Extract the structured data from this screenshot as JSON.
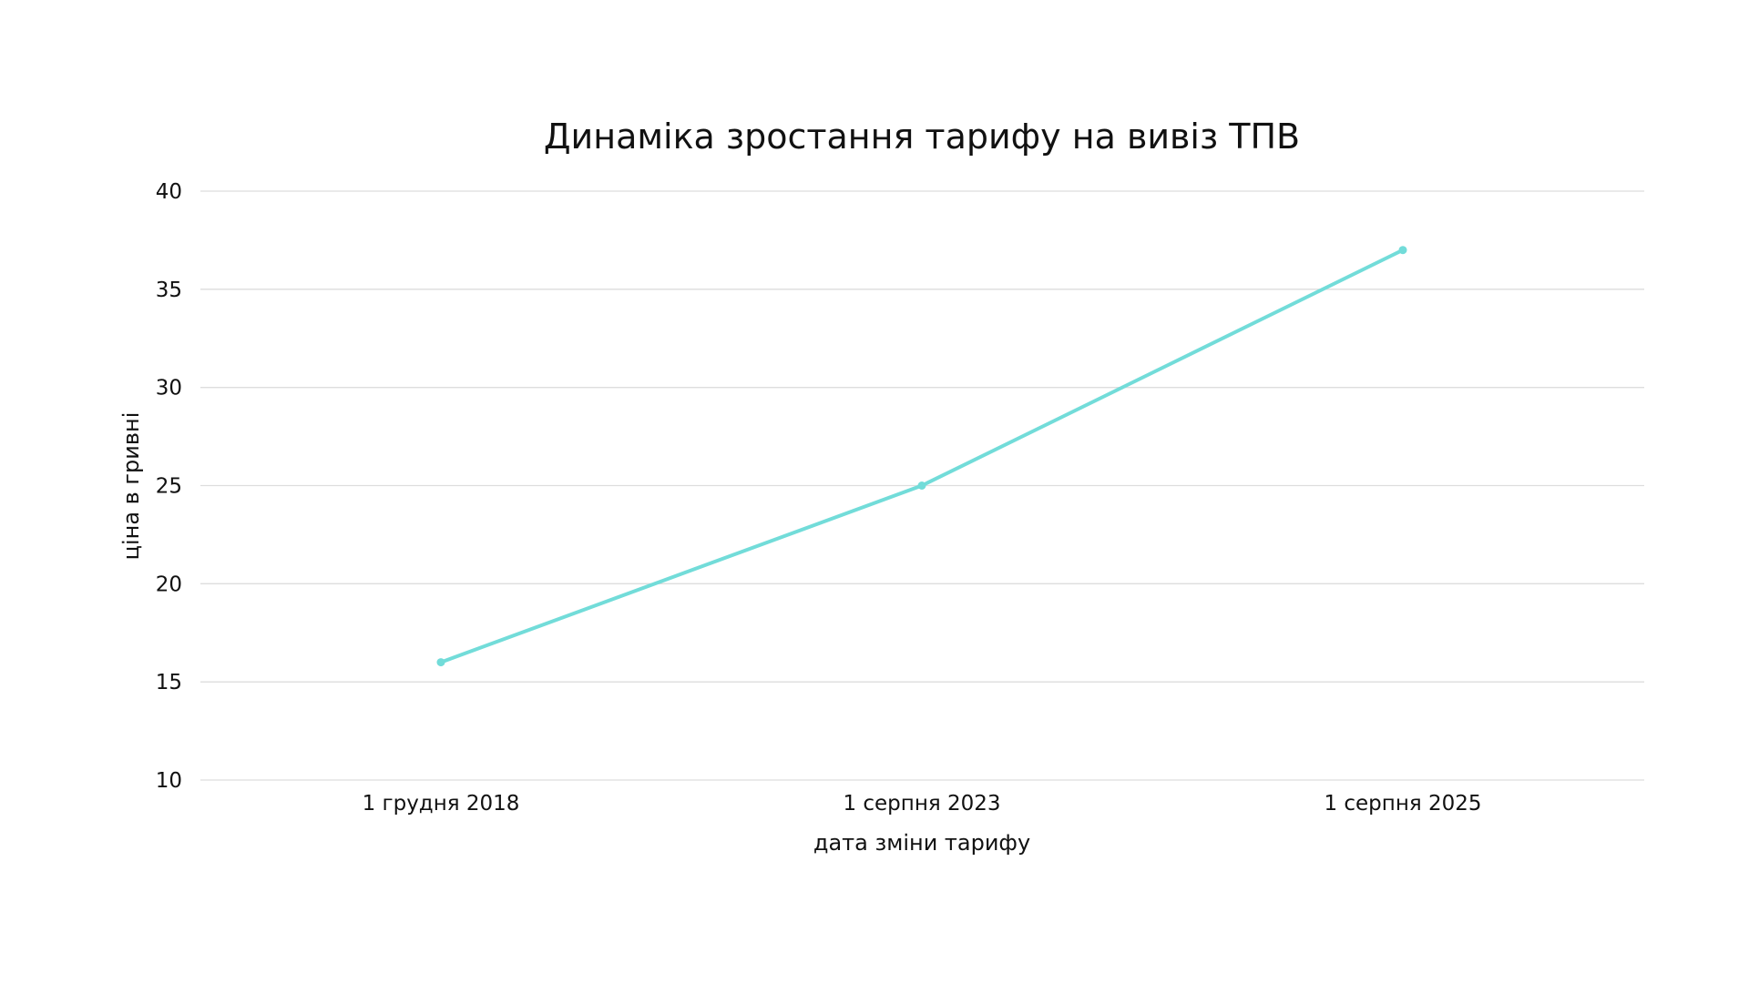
{
  "chart_data": {
    "type": "line",
    "title": "Динаміка зростання тарифу на вивіз ТПВ",
    "xlabel": "дата зміни тарифу",
    "ylabel": "ціна в гривні",
    "categories": [
      "1 грудня 2018",
      "1 серпня 2023",
      "1 серпня 2025"
    ],
    "series": [
      {
        "values": [
          16,
          25,
          37
        ],
        "color": "#72dcd9"
      }
    ],
    "ylim": [
      10,
      40
    ],
    "yticks": [
      10,
      15,
      20,
      25,
      30,
      35,
      40
    ],
    "grid": true,
    "legend": "none",
    "gridColor": "#dddddd"
  }
}
